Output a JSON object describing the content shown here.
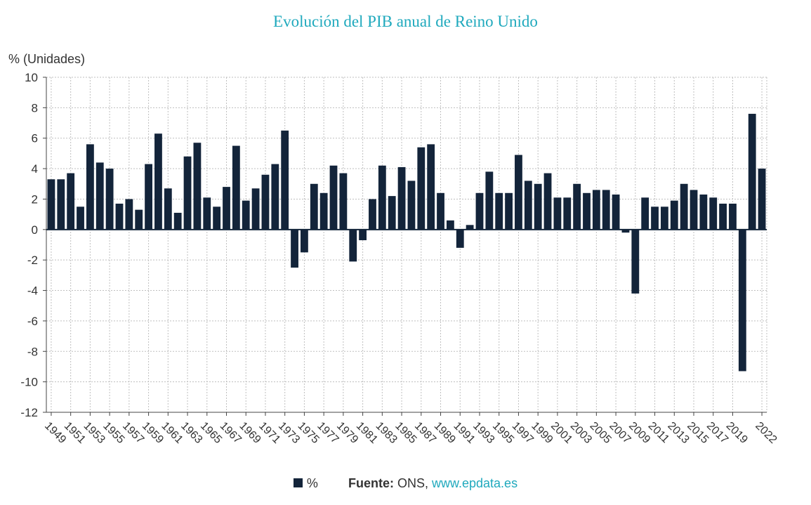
{
  "title": "Evolución del PIB anual de Reino Unido",
  "footer": {
    "legend_label": "%",
    "source_label": "Fuente:",
    "source_value": "ONS,",
    "source_link": "www.epdata.es"
  },
  "colors": {
    "bar": "#13243a",
    "title": "#1fa9bd",
    "link": "#1fa9bd",
    "grid": "#bfbfbf"
  },
  "chart_data": {
    "type": "bar",
    "title": "Evolución del PIB anual de Reino Unido",
    "ylabel": "% (Unidades)",
    "xlabel": "",
    "ylim": [
      -12,
      10
    ],
    "yticks": [
      10,
      8,
      6,
      4,
      2,
      0,
      -2,
      -4,
      -6,
      -8,
      -10,
      -12
    ],
    "grid": true,
    "legend": "bottom",
    "series": [
      {
        "name": "%",
        "values": [
          3.3,
          3.3,
          3.7,
          1.5,
          5.6,
          4.4,
          4.0,
          1.7,
          2.0,
          1.3,
          4.3,
          6.3,
          2.7,
          1.1,
          4.8,
          5.7,
          2.1,
          1.5,
          2.8,
          5.5,
          1.9,
          2.7,
          3.6,
          4.3,
          6.5,
          -2.5,
          -1.5,
          3.0,
          2.4,
          4.2,
          3.7,
          -2.1,
          -0.7,
          2.0,
          4.2,
          2.2,
          4.1,
          3.2,
          5.4,
          5.6,
          2.4,
          0.6,
          -1.2,
          0.3,
          2.4,
          3.8,
          2.4,
          2.4,
          4.9,
          3.2,
          3.0,
          3.7,
          2.1,
          2.1,
          3.0,
          2.4,
          2.6,
          2.6,
          2.3,
          -0.2,
          -4.2,
          2.1,
          1.5,
          1.5,
          1.9,
          3.0,
          2.6,
          2.3,
          2.1,
          1.7,
          1.7,
          -9.3,
          7.6,
          4.0
        ]
      }
    ],
    "categories": [
      "1949",
      "1950",
      "1951",
      "1952",
      "1953",
      "1954",
      "1955",
      "1956",
      "1957",
      "1958",
      "1959",
      "1960",
      "1961",
      "1962",
      "1963",
      "1964",
      "1965",
      "1966",
      "1967",
      "1968",
      "1969",
      "1970",
      "1971",
      "1972",
      "1973",
      "1974",
      "1975",
      "1976",
      "1977",
      "1978",
      "1979",
      "1980",
      "1981",
      "1982",
      "1983",
      "1984",
      "1985",
      "1986",
      "1987",
      "1988",
      "1989",
      "1990",
      "1991",
      "1992",
      "1993",
      "1994",
      "1995",
      "1996",
      "1997",
      "1998",
      "1999",
      "2000",
      "2001",
      "2002",
      "2003",
      "2004",
      "2005",
      "2006",
      "2007",
      "2008",
      "2009",
      "2010",
      "2011",
      "2012",
      "2013",
      "2014",
      "2015",
      "2016",
      "2017",
      "2018",
      "2019",
      "2020",
      "2021",
      "2022"
    ],
    "tick_labels": [
      "1949",
      "1951",
      "1953",
      "1955",
      "1957",
      "1959",
      "1961",
      "1963",
      "1965",
      "1967",
      "1969",
      "1971",
      "1973",
      "1975",
      "1977",
      "1979",
      "1981",
      "1983",
      "1985",
      "1987",
      "1989",
      "1991",
      "1993",
      "1995",
      "1997",
      "1999",
      "2001",
      "2003",
      "2005",
      "2007",
      "2009",
      "2011",
      "2013",
      "2015",
      "2017",
      "2019",
      "2022"
    ]
  }
}
